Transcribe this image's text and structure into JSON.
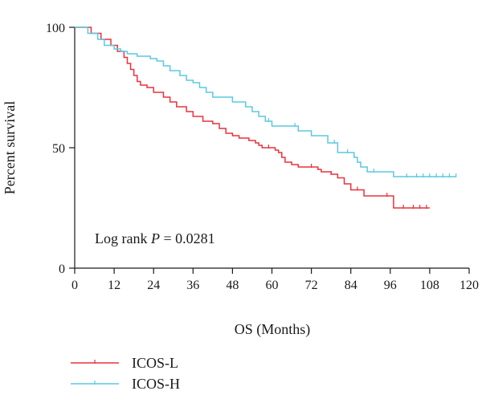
{
  "chart_data": {
    "type": "line",
    "subtype": "kaplan-meier",
    "title": "",
    "xlabel": "OS (Months)",
    "ylabel": "Percent survival",
    "xlim": [
      0,
      120
    ],
    "ylim": [
      0,
      100
    ],
    "xticks": [
      0,
      12,
      24,
      36,
      48,
      60,
      72,
      84,
      96,
      108,
      120
    ],
    "yticks": [
      0,
      50,
      100
    ],
    "grid": false,
    "legend_position": "bottom-left, below plot",
    "annotation": {
      "prefix": "Log rank ",
      "p_symbol": "P",
      "suffix": " = 0.0281"
    },
    "series": [
      {
        "name": "ICOS-L",
        "color": "#e8323c",
        "steps": [
          [
            0,
            100
          ],
          [
            5,
            97.5
          ],
          [
            8,
            95
          ],
          [
            11,
            92.5
          ],
          [
            13,
            90
          ],
          [
            15,
            87.5
          ],
          [
            16,
            85
          ],
          [
            17,
            82.5
          ],
          [
            18,
            80
          ],
          [
            19,
            77.5
          ],
          [
            20,
            76
          ],
          [
            22,
            75
          ],
          [
            24,
            73
          ],
          [
            27,
            71
          ],
          [
            29,
            69
          ],
          [
            31,
            67
          ],
          [
            34,
            65
          ],
          [
            36,
            63
          ],
          [
            39,
            61
          ],
          [
            42,
            60
          ],
          [
            44,
            58
          ],
          [
            46,
            56
          ],
          [
            48,
            55
          ],
          [
            50,
            54
          ],
          [
            53,
            53
          ],
          [
            55,
            52
          ],
          [
            56,
            51
          ],
          [
            57,
            50
          ],
          [
            61,
            49
          ],
          [
            62,
            48
          ],
          [
            63,
            46
          ],
          [
            64,
            44
          ],
          [
            66,
            43
          ],
          [
            68,
            42
          ],
          [
            74,
            41
          ],
          [
            75,
            40
          ],
          [
            78,
            39
          ],
          [
            80,
            37.5
          ],
          [
            82,
            35
          ],
          [
            84,
            32.5
          ],
          [
            88,
            30
          ],
          [
            97,
            25
          ]
        ],
        "end_x": 108,
        "censored": [
          [
            59,
            50
          ],
          [
            72,
            42
          ],
          [
            78,
            39
          ],
          [
            86,
            32.5
          ],
          [
            95,
            30
          ],
          [
            100,
            25
          ],
          [
            103,
            25
          ],
          [
            105,
            25
          ],
          [
            107,
            25
          ]
        ]
      },
      {
        "name": "ICOS-H",
        "color": "#5bc8e0",
        "steps": [
          [
            0,
            100
          ],
          [
            4,
            97.5
          ],
          [
            7,
            95
          ],
          [
            9,
            92.5
          ],
          [
            12,
            91
          ],
          [
            14,
            90
          ],
          [
            16,
            89
          ],
          [
            19,
            88
          ],
          [
            23,
            87
          ],
          [
            25,
            86
          ],
          [
            27,
            84
          ],
          [
            29,
            82
          ],
          [
            32,
            80
          ],
          [
            34,
            78
          ],
          [
            36,
            77
          ],
          [
            38,
            75
          ],
          [
            40,
            73
          ],
          [
            42,
            71
          ],
          [
            48,
            69
          ],
          [
            52,
            67
          ],
          [
            54,
            65
          ],
          [
            56,
            63
          ],
          [
            58,
            61
          ],
          [
            60,
            59
          ],
          [
            68,
            57
          ],
          [
            72,
            55
          ],
          [
            77,
            52
          ],
          [
            80,
            48
          ],
          [
            85,
            46
          ],
          [
            86,
            44
          ],
          [
            87,
            42
          ],
          [
            89,
            40
          ],
          [
            97,
            38
          ]
        ],
        "end_x": 116,
        "censored": [
          [
            59,
            61
          ],
          [
            67,
            59
          ],
          [
            79,
            52
          ],
          [
            83,
            48
          ],
          [
            91,
            40
          ],
          [
            101,
            38
          ],
          [
            104,
            38
          ],
          [
            106,
            38
          ],
          [
            108,
            38
          ],
          [
            110,
            38
          ],
          [
            112,
            38
          ],
          [
            114,
            38
          ],
          [
            116,
            38
          ]
        ]
      }
    ]
  }
}
